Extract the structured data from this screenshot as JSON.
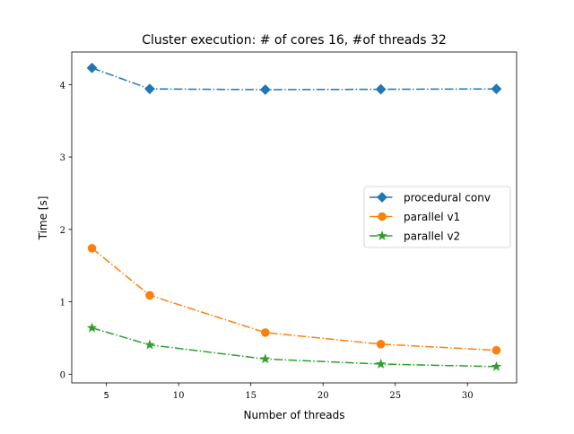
{
  "chart_data": {
    "type": "line",
    "title": "Cluster execution: # of cores 16, #of threads 32",
    "xlabel": "Number of threads",
    "ylabel": "Time [s]",
    "x": [
      4,
      8,
      16,
      24,
      32
    ],
    "xlim": [
      2.6,
      33.4
    ],
    "ylim": [
      -0.12,
      4.45
    ],
    "xticks": [
      5,
      10,
      15,
      20,
      25,
      30
    ],
    "xtick_labels": [
      "5",
      "10",
      "15",
      "20",
      "25",
      "30"
    ],
    "yticks": [
      0,
      1,
      2,
      3,
      4
    ],
    "ytick_labels": [
      "0",
      "1",
      "2",
      "3",
      "4"
    ],
    "grid": false,
    "legend_position": "center-right",
    "series": [
      {
        "name": "procedural conv",
        "values": [
          4.23,
          3.94,
          3.93,
          3.935,
          3.94
        ],
        "color": "#1f77b4",
        "marker": "diamond",
        "linestyle": "dash-dot"
      },
      {
        "name": "parallel v1",
        "values": [
          1.74,
          1.09,
          0.575,
          0.415,
          0.33
        ],
        "color": "#ff7f0e",
        "marker": "circle",
        "linestyle": "dash-dot"
      },
      {
        "name": "parallel v2",
        "values": [
          0.64,
          0.405,
          0.21,
          0.14,
          0.105
        ],
        "color": "#2ca02c",
        "marker": "star",
        "linestyle": "dash-dot"
      }
    ]
  }
}
